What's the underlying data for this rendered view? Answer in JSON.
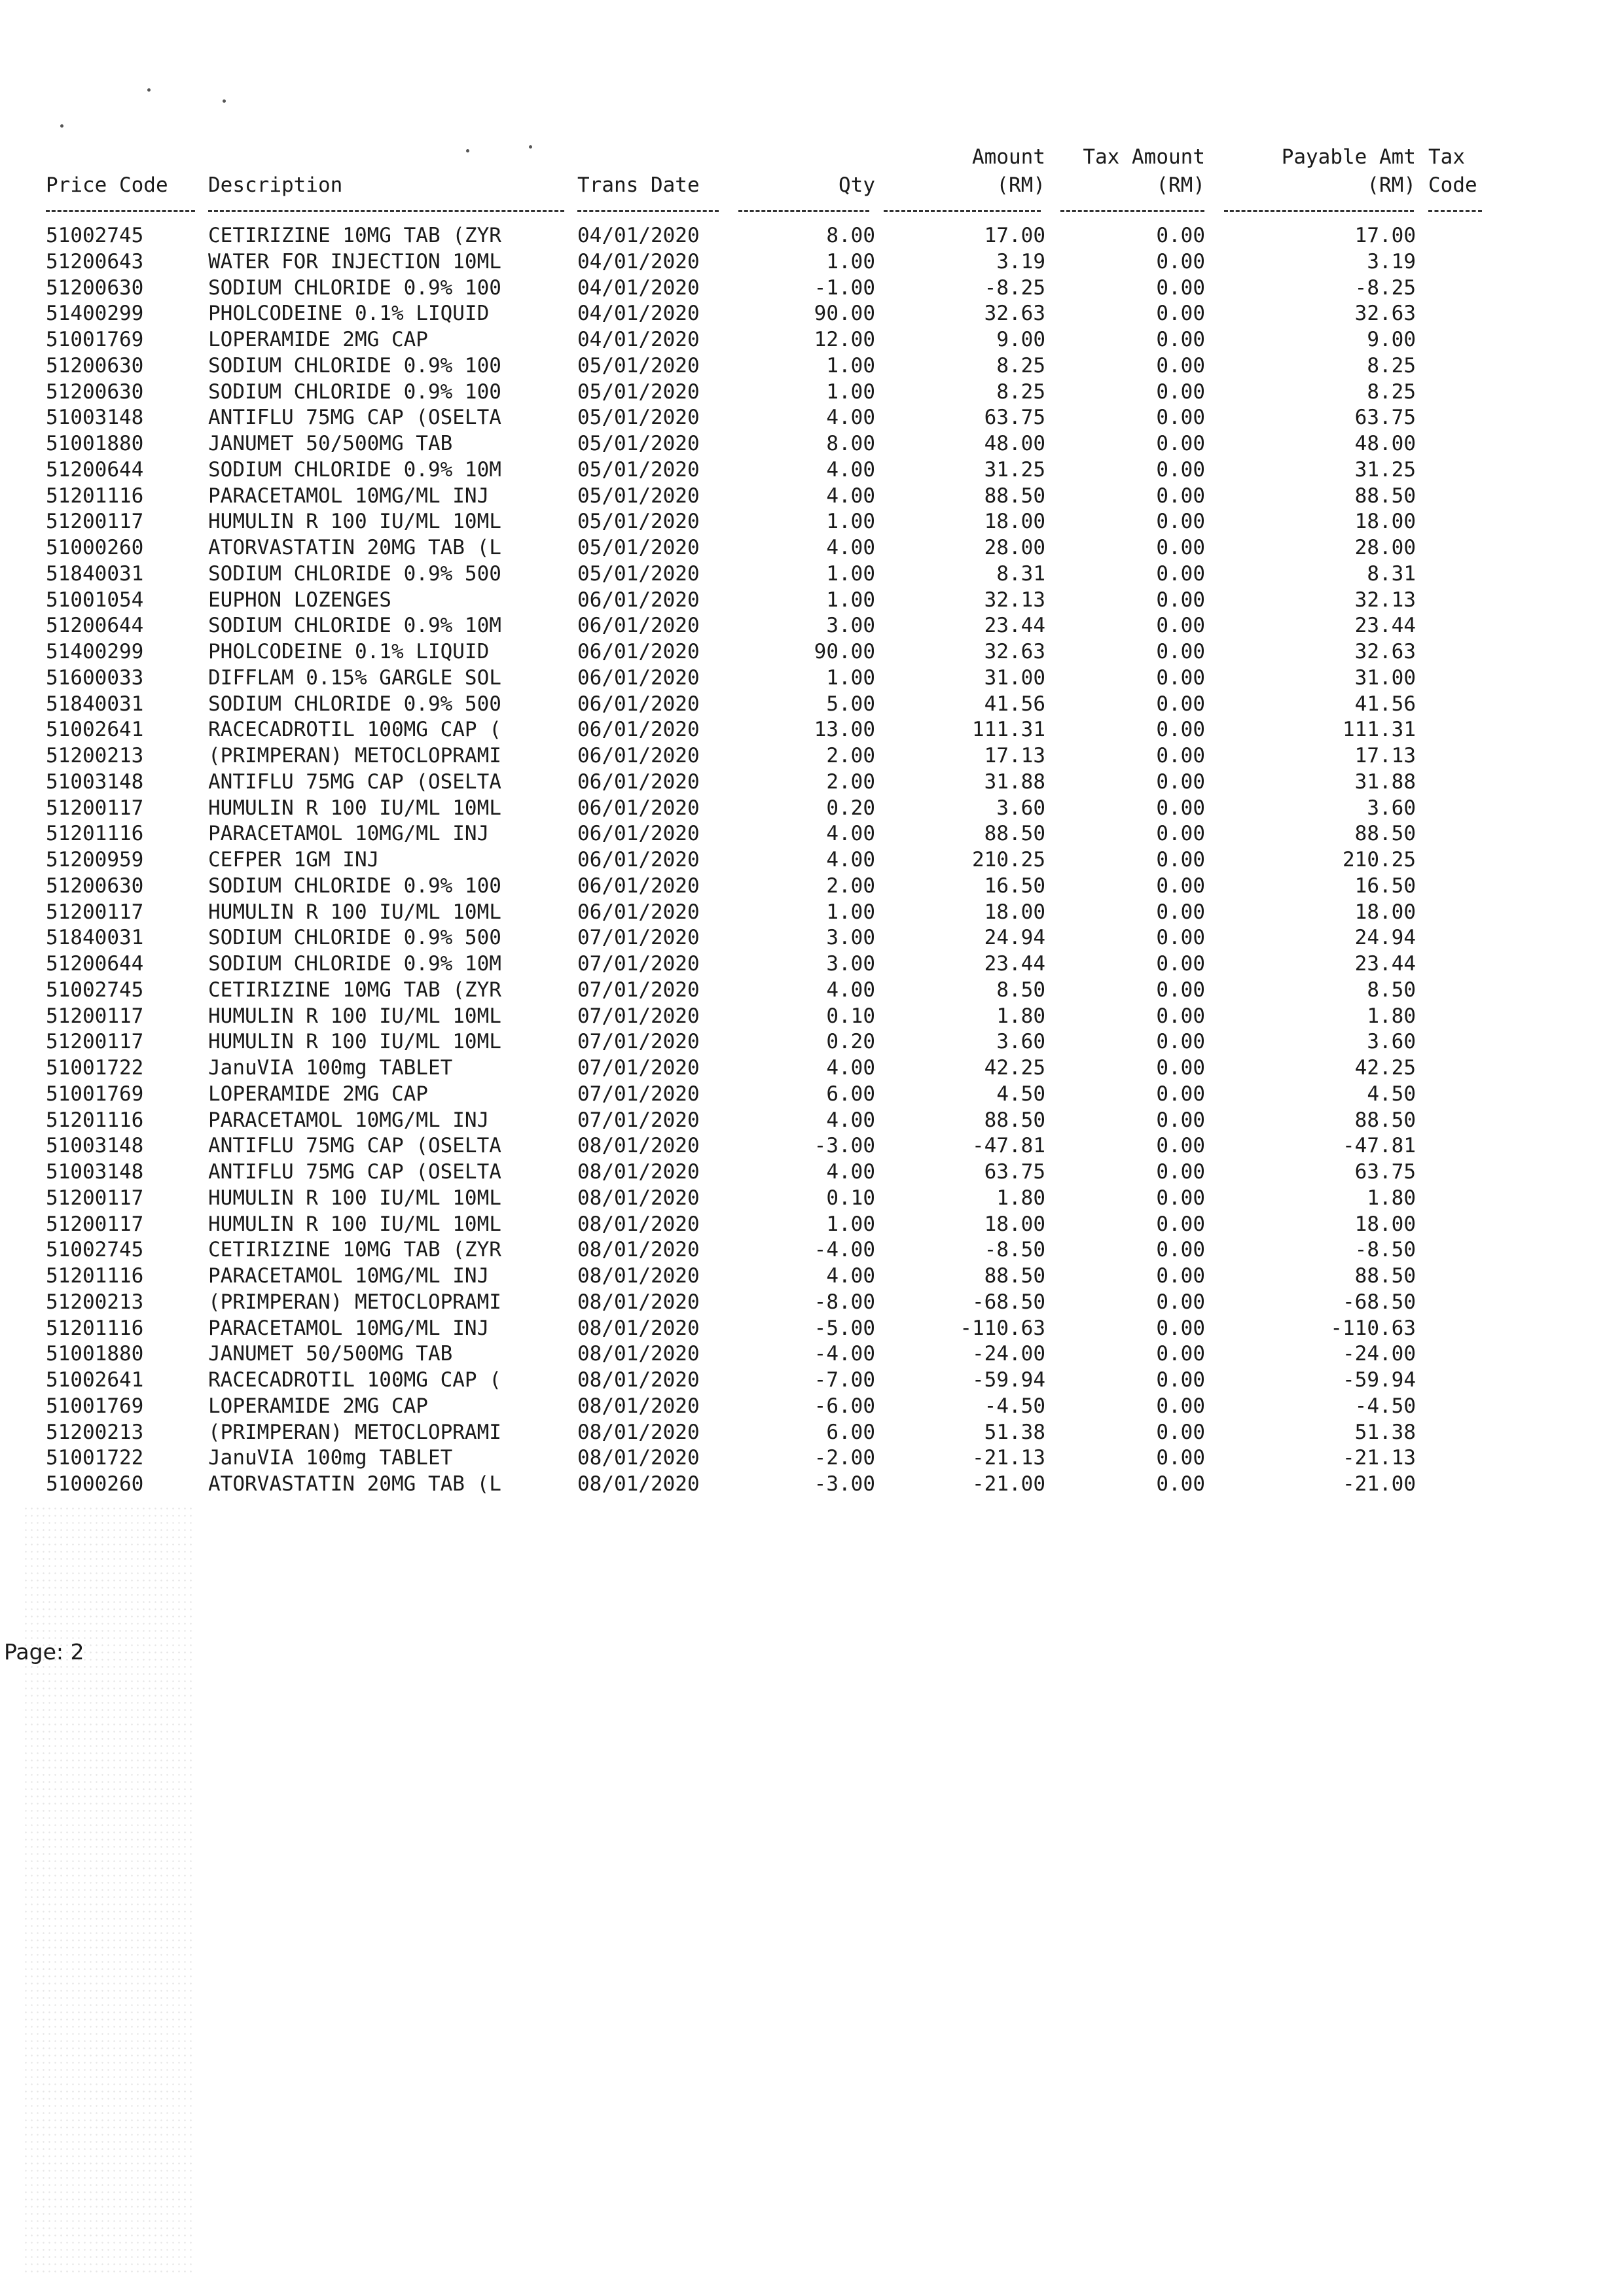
{
  "headers": {
    "price_code": "Price Code",
    "description": "Description",
    "trans_date": "Trans Date",
    "qty": "Qty",
    "amount": "Amount",
    "amount_unit": "(RM)",
    "tax_amount": "Tax Amount",
    "tax_amount_unit": "(RM)",
    "payable_amt": "Payable Amt",
    "payable_amt_unit": "(RM)",
    "tax_code": "Tax",
    "tax_code_2": "Code"
  },
  "rows": [
    [
      "51002745",
      "CETIRIZINE 10MG TAB (ZYR",
      "04/01/2020",
      "8.00",
      "17.00",
      "0.00",
      "17.00"
    ],
    [
      "51200643",
      "WATER FOR INJECTION 10ML",
      "04/01/2020",
      "1.00",
      "3.19",
      "0.00",
      "3.19"
    ],
    [
      "51200630",
      "SODIUM CHLORIDE 0.9% 100",
      "04/01/2020",
      "-1.00",
      "-8.25",
      "0.00",
      "-8.25"
    ],
    [
      "51400299",
      "PHOLCODEINE 0.1% LIQUID",
      "04/01/2020",
      "90.00",
      "32.63",
      "0.00",
      "32.63"
    ],
    [
      "51001769",
      "LOPERAMIDE 2MG CAP",
      "04/01/2020",
      "12.00",
      "9.00",
      "0.00",
      "9.00"
    ],
    [
      "51200630",
      "SODIUM CHLORIDE 0.9% 100",
      "05/01/2020",
      "1.00",
      "8.25",
      "0.00",
      "8.25"
    ],
    [
      "51200630",
      "SODIUM CHLORIDE 0.9% 100",
      "05/01/2020",
      "1.00",
      "8.25",
      "0.00",
      "8.25"
    ],
    [
      "51003148",
      "ANTIFLU 75MG CAP (OSELTA",
      "05/01/2020",
      "4.00",
      "63.75",
      "0.00",
      "63.75"
    ],
    [
      "51001880",
      "JANUMET 50/500MG TAB",
      "05/01/2020",
      "8.00",
      "48.00",
      "0.00",
      "48.00"
    ],
    [
      "51200644",
      "SODIUM CHLORIDE 0.9% 10M",
      "05/01/2020",
      "4.00",
      "31.25",
      "0.00",
      "31.25"
    ],
    [
      "51201116",
      "PARACETAMOL 10MG/ML INJ",
      "05/01/2020",
      "4.00",
      "88.50",
      "0.00",
      "88.50"
    ],
    [
      "51200117",
      "HUMULIN R 100 IU/ML 10ML",
      "05/01/2020",
      "1.00",
      "18.00",
      "0.00",
      "18.00"
    ],
    [
      "51000260",
      "ATORVASTATIN 20MG TAB (L",
      "05/01/2020",
      "4.00",
      "28.00",
      "0.00",
      "28.00"
    ],
    [
      "51840031",
      "SODIUM CHLORIDE 0.9% 500",
      "05/01/2020",
      "1.00",
      "8.31",
      "0.00",
      "8.31"
    ],
    [
      "51001054",
      "EUPHON LOZENGES",
      "06/01/2020",
      "1.00",
      "32.13",
      "0.00",
      "32.13"
    ],
    [
      "51200644",
      "SODIUM CHLORIDE 0.9% 10M",
      "06/01/2020",
      "3.00",
      "23.44",
      "0.00",
      "23.44"
    ],
    [
      "51400299",
      "PHOLCODEINE 0.1% LIQUID",
      "06/01/2020",
      "90.00",
      "32.63",
      "0.00",
      "32.63"
    ],
    [
      "51600033",
      "DIFFLAM 0.15% GARGLE SOL",
      "06/01/2020",
      "1.00",
      "31.00",
      "0.00",
      "31.00"
    ],
    [
      "51840031",
      "SODIUM CHLORIDE 0.9% 500",
      "06/01/2020",
      "5.00",
      "41.56",
      "0.00",
      "41.56"
    ],
    [
      "51002641",
      "RACECADROTIL 100MG CAP (",
      "06/01/2020",
      "13.00",
      "111.31",
      "0.00",
      "111.31"
    ],
    [
      "51200213",
      "(PRIMPERAN) METOCLOPRAMI",
      "06/01/2020",
      "2.00",
      "17.13",
      "0.00",
      "17.13"
    ],
    [
      "51003148",
      "ANTIFLU 75MG CAP (OSELTA",
      "06/01/2020",
      "2.00",
      "31.88",
      "0.00",
      "31.88"
    ],
    [
      "51200117",
      "HUMULIN R 100 IU/ML 10ML",
      "06/01/2020",
      "0.20",
      "3.60",
      "0.00",
      "3.60"
    ],
    [
      "51201116",
      "PARACETAMOL 10MG/ML INJ",
      "06/01/2020",
      "4.00",
      "88.50",
      "0.00",
      "88.50"
    ],
    [
      "51200959",
      "CEFPER 1GM INJ",
      "06/01/2020",
      "4.00",
      "210.25",
      "0.00",
      "210.25"
    ],
    [
      "51200630",
      "SODIUM CHLORIDE 0.9% 100",
      "06/01/2020",
      "2.00",
      "16.50",
      "0.00",
      "16.50"
    ],
    [
      "51200117",
      "HUMULIN R 100 IU/ML 10ML",
      "06/01/2020",
      "1.00",
      "18.00",
      "0.00",
      "18.00"
    ],
    [
      "51840031",
      "SODIUM CHLORIDE 0.9% 500",
      "07/01/2020",
      "3.00",
      "24.94",
      "0.00",
      "24.94"
    ],
    [
      "51200644",
      "SODIUM CHLORIDE 0.9% 10M",
      "07/01/2020",
      "3.00",
      "23.44",
      "0.00",
      "23.44"
    ],
    [
      "51002745",
      "CETIRIZINE 10MG TAB (ZYR",
      "07/01/2020",
      "4.00",
      "8.50",
      "0.00",
      "8.50"
    ],
    [
      "51200117",
      "HUMULIN R 100 IU/ML 10ML",
      "07/01/2020",
      "0.10",
      "1.80",
      "0.00",
      "1.80"
    ],
    [
      "51200117",
      "HUMULIN R 100 IU/ML 10ML",
      "07/01/2020",
      "0.20",
      "3.60",
      "0.00",
      "3.60"
    ],
    [
      "51001722",
      "JanuVIA 100mg TABLET",
      "07/01/2020",
      "4.00",
      "42.25",
      "0.00",
      "42.25"
    ],
    [
      "51001769",
      "LOPERAMIDE 2MG CAP",
      "07/01/2020",
      "6.00",
      "4.50",
      "0.00",
      "4.50"
    ],
    [
      "51201116",
      "PARACETAMOL 10MG/ML INJ",
      "07/01/2020",
      "4.00",
      "88.50",
      "0.00",
      "88.50"
    ],
    [
      "51003148",
      "ANTIFLU 75MG CAP (OSELTA",
      "08/01/2020",
      "-3.00",
      "-47.81",
      "0.00",
      "-47.81"
    ],
    [
      "51003148",
      "ANTIFLU 75MG CAP (OSELTA",
      "08/01/2020",
      "4.00",
      "63.75",
      "0.00",
      "63.75"
    ],
    [
      "51200117",
      "HUMULIN R 100 IU/ML 10ML",
      "08/01/2020",
      "0.10",
      "1.80",
      "0.00",
      "1.80"
    ],
    [
      "51200117",
      "HUMULIN R 100 IU/ML 10ML",
      "08/01/2020",
      "1.00",
      "18.00",
      "0.00",
      "18.00"
    ],
    [
      "51002745",
      "CETIRIZINE 10MG TAB (ZYR",
      "08/01/2020",
      "-4.00",
      "-8.50",
      "0.00",
      "-8.50"
    ],
    [
      "51201116",
      "PARACETAMOL 10MG/ML INJ",
      "08/01/2020",
      "4.00",
      "88.50",
      "0.00",
      "88.50"
    ],
    [
      "51200213",
      "(PRIMPERAN) METOCLOPRAMI",
      "08/01/2020",
      "-8.00",
      "-68.50",
      "0.00",
      "-68.50"
    ],
    [
      "51201116",
      "PARACETAMOL 10MG/ML INJ",
      "08/01/2020",
      "-5.00",
      "-110.63",
      "0.00",
      "-110.63"
    ],
    [
      "51001880",
      "JANUMET 50/500MG TAB",
      "08/01/2020",
      "-4.00",
      "-24.00",
      "0.00",
      "-24.00"
    ],
    [
      "51002641",
      "RACECADROTIL 100MG CAP (",
      "08/01/2020",
      "-7.00",
      "-59.94",
      "0.00",
      "-59.94"
    ],
    [
      "51001769",
      "LOPERAMIDE 2MG CAP",
      "08/01/2020",
      "-6.00",
      "-4.50",
      "0.00",
      "-4.50"
    ],
    [
      "51200213",
      "(PRIMPERAN) METOCLOPRAMI",
      "08/01/2020",
      "6.00",
      "51.38",
      "0.00",
      "51.38"
    ],
    [
      "51001722",
      "JanuVIA 100mg TABLET",
      "08/01/2020",
      "-2.00",
      "-21.13",
      "0.00",
      "-21.13"
    ],
    [
      "51000260",
      "ATORVASTATIN 20MG TAB (L",
      "08/01/2020",
      "-3.00",
      "-21.00",
      "0.00",
      "-21.00"
    ]
  ],
  "footer": {
    "page_label": "Page: 2"
  }
}
